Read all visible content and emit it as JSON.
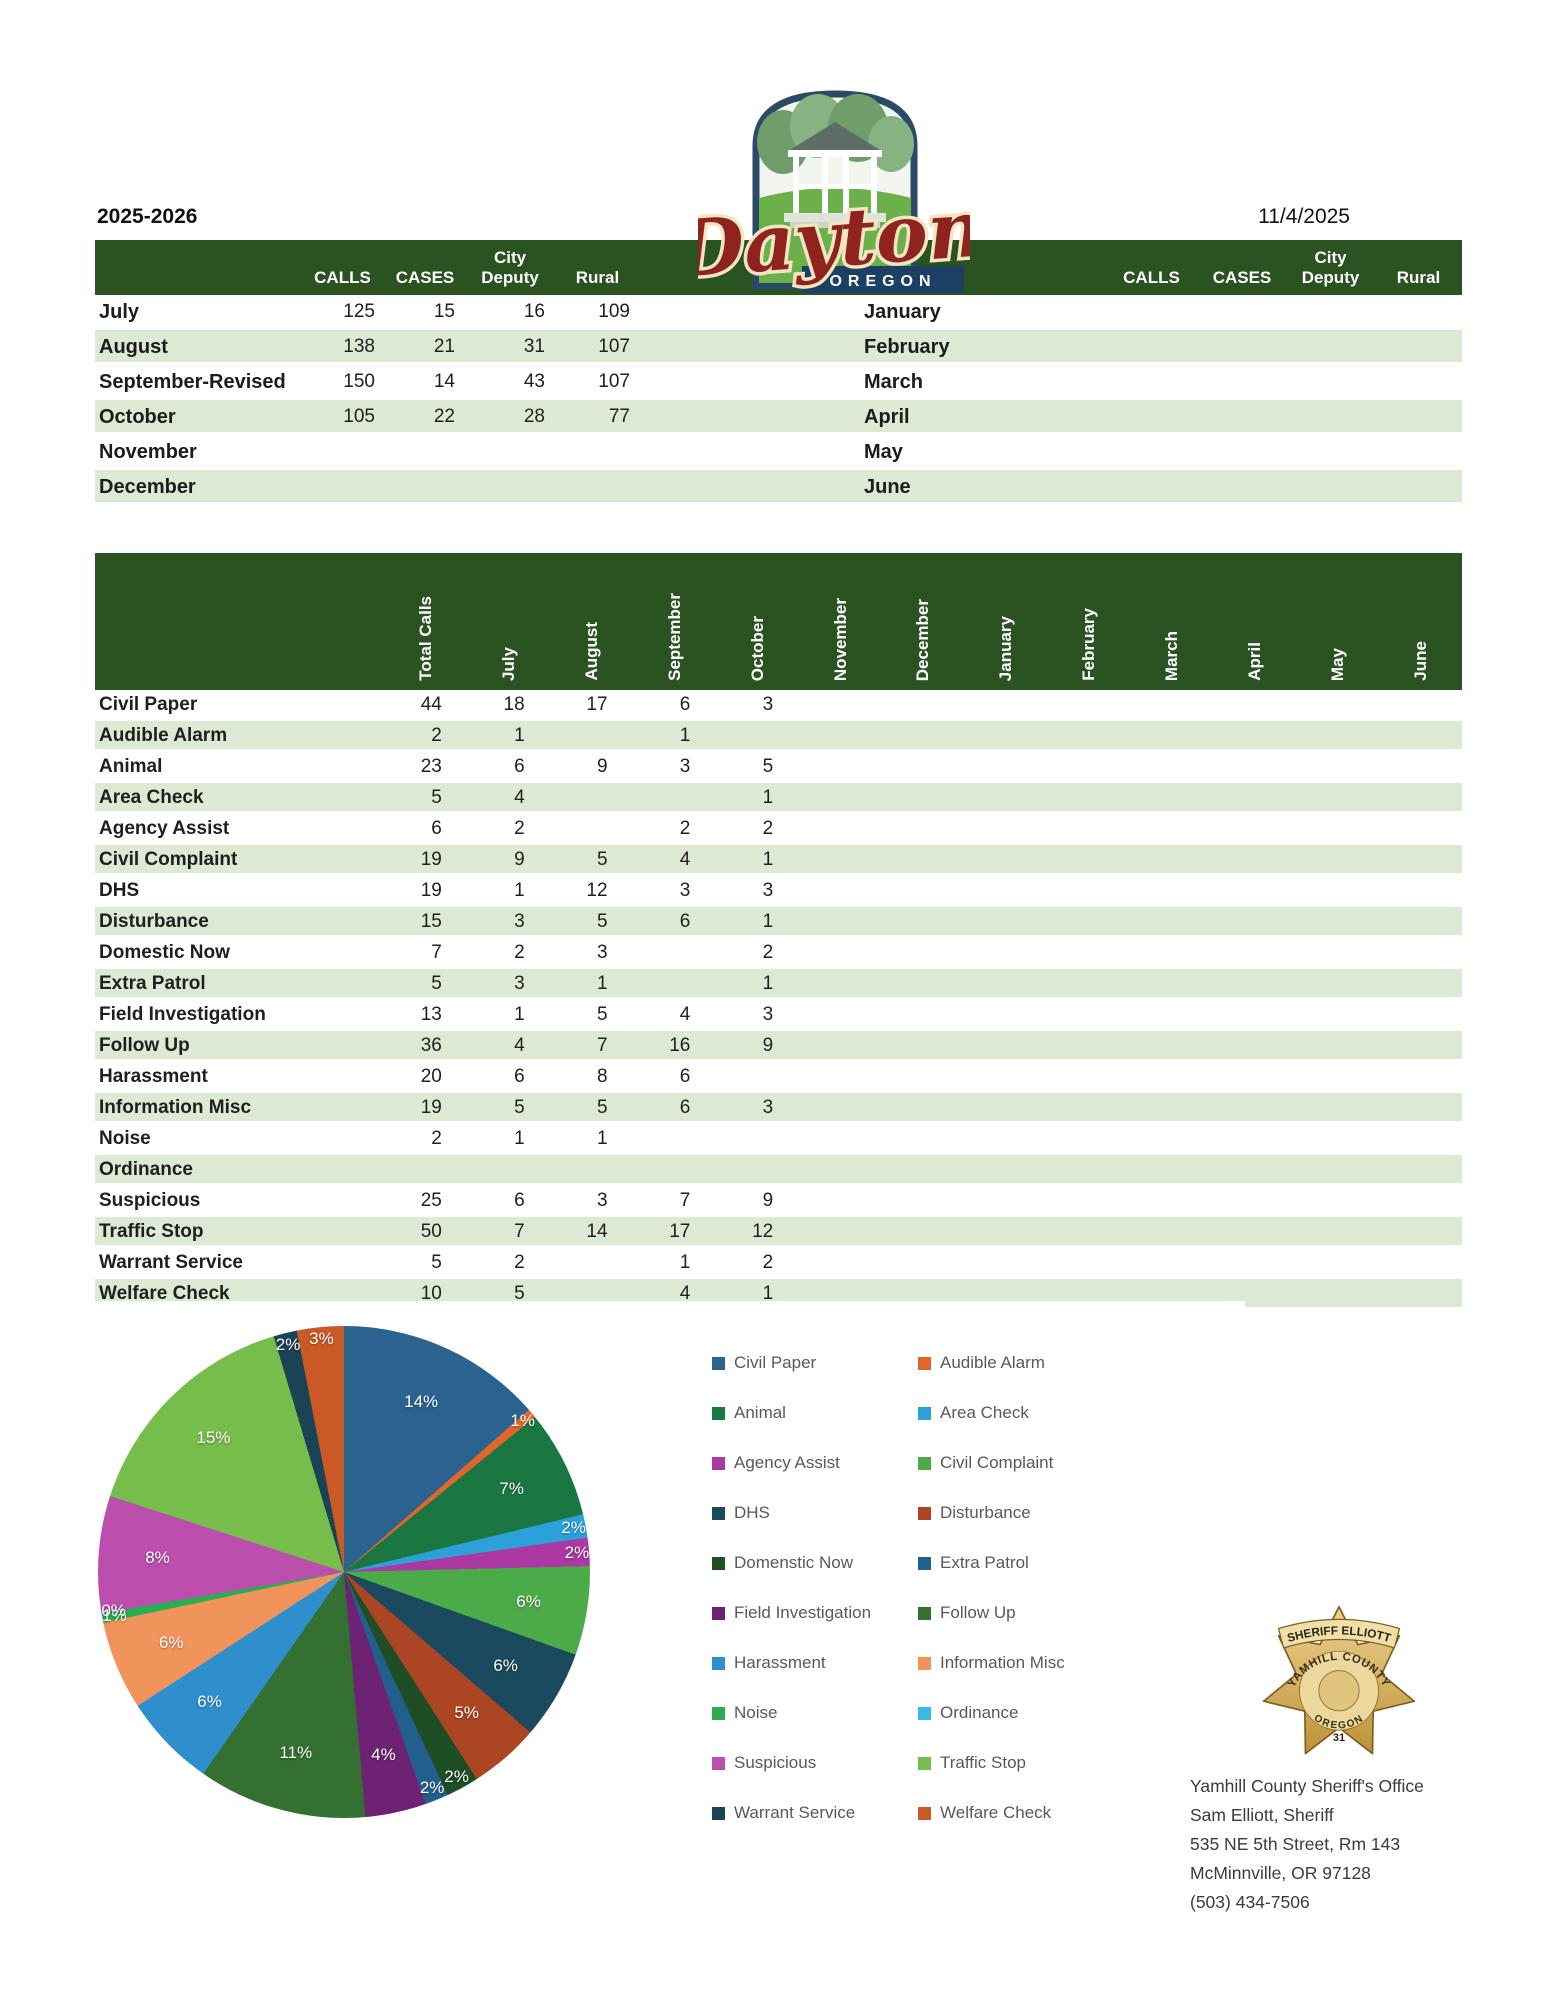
{
  "page": {
    "fiscal_year": "2025-2026",
    "report_date": "11/4/2025"
  },
  "logo": {
    "city": "Dayton",
    "state": "OREGON"
  },
  "summary_table": {
    "headers": {
      "city_line": "City",
      "calls": "CALLS",
      "cases": "CASES",
      "deputy": "Deputy",
      "rural": "Rural"
    },
    "rows": [
      {
        "left_month": "July",
        "left": [
          "125",
          "15",
          "16",
          "109"
        ],
        "right_month": "January",
        "right": [
          "",
          "",
          "",
          ""
        ]
      },
      {
        "left_month": "August",
        "left": [
          "138",
          "21",
          "31",
          "107"
        ],
        "right_month": "February",
        "right": [
          "",
          "",
          "",
          ""
        ]
      },
      {
        "left_month": "September-Revised",
        "left": [
          "150",
          "14",
          "43",
          "107"
        ],
        "right_month": "March",
        "right": [
          "",
          "",
          "",
          ""
        ]
      },
      {
        "left_month": "October",
        "left": [
          "105",
          "22",
          "28",
          "77"
        ],
        "right_month": "April",
        "right": [
          "",
          "",
          "",
          ""
        ]
      },
      {
        "left_month": "November",
        "left": [
          "",
          "",
          "",
          ""
        ],
        "right_month": "May",
        "right": [
          "",
          "",
          "",
          ""
        ]
      },
      {
        "left_month": "December",
        "left": [
          "",
          "",
          "",
          ""
        ],
        "right_month": "June",
        "right": [
          "",
          "",
          "",
          ""
        ]
      }
    ]
  },
  "call_type_table": {
    "columns": [
      "Total Calls",
      "July",
      "August",
      "September",
      "October",
      "November",
      "December",
      "January",
      "February",
      "March",
      "April",
      "May",
      "June"
    ],
    "rows": [
      {
        "label": "Civil Paper",
        "values": [
          "44",
          "18",
          "17",
          "6",
          "3",
          "",
          "",
          "",
          "",
          "",
          "",
          "",
          ""
        ]
      },
      {
        "label": "Audible Alarm",
        "values": [
          "2",
          "1",
          "",
          "1",
          "",
          "",
          "",
          "",
          "",
          "",
          "",
          "",
          ""
        ]
      },
      {
        "label": "Animal",
        "values": [
          "23",
          "6",
          "9",
          "3",
          "5",
          "",
          "",
          "",
          "",
          "",
          "",
          "",
          ""
        ]
      },
      {
        "label": "Area Check",
        "values": [
          "5",
          "4",
          "",
          "",
          "1",
          "",
          "",
          "",
          "",
          "",
          "",
          "",
          ""
        ]
      },
      {
        "label": "Agency Assist",
        "values": [
          "6",
          "2",
          "",
          "2",
          "2",
          "",
          "",
          "",
          "",
          "",
          "",
          "",
          ""
        ]
      },
      {
        "label": "Civil Complaint",
        "values": [
          "19",
          "9",
          "5",
          "4",
          "1",
          "",
          "",
          "",
          "",
          "",
          "",
          "",
          ""
        ]
      },
      {
        "label": "DHS",
        "values": [
          "19",
          "1",
          "12",
          "3",
          "3",
          "",
          "",
          "",
          "",
          "",
          "",
          "",
          ""
        ]
      },
      {
        "label": "Disturbance",
        "values": [
          "15",
          "3",
          "5",
          "6",
          "1",
          "",
          "",
          "",
          "",
          "",
          "",
          "",
          ""
        ]
      },
      {
        "label": "Domestic Now",
        "values": [
          "7",
          "2",
          "3",
          "",
          "2",
          "",
          "",
          "",
          "",
          "",
          "",
          "",
          ""
        ]
      },
      {
        "label": "Extra Patrol",
        "values": [
          "5",
          "3",
          "1",
          "",
          "1",
          "",
          "",
          "",
          "",
          "",
          "",
          "",
          ""
        ]
      },
      {
        "label": "Field Investigation",
        "values": [
          "13",
          "1",
          "5",
          "4",
          "3",
          "",
          "",
          "",
          "",
          "",
          "",
          "",
          ""
        ]
      },
      {
        "label": "Follow Up",
        "values": [
          "36",
          "4",
          "7",
          "16",
          "9",
          "",
          "",
          "",
          "",
          "",
          "",
          "",
          ""
        ]
      },
      {
        "label": "Harassment",
        "values": [
          "20",
          "6",
          "8",
          "6",
          "",
          "",
          "",
          "",
          "",
          "",
          "",
          "",
          ""
        ]
      },
      {
        "label": "Information Misc",
        "values": [
          "19",
          "5",
          "5",
          "6",
          "3",
          "",
          "",
          "",
          "",
          "",
          "",
          "",
          ""
        ]
      },
      {
        "label": "Noise",
        "values": [
          "2",
          "1",
          "1",
          "",
          "",
          "",
          "",
          "",
          "",
          "",
          "",
          "",
          ""
        ]
      },
      {
        "label": "Ordinance",
        "values": [
          "",
          "",
          "",
          "",
          "",
          "",
          "",
          "",
          "",
          "",
          "",
          "",
          ""
        ]
      },
      {
        "label": "Suspicious",
        "values": [
          "25",
          "6",
          "3",
          "7",
          "9",
          "",
          "",
          "",
          "",
          "",
          "",
          "",
          ""
        ]
      },
      {
        "label": "Traffic Stop",
        "values": [
          "50",
          "7",
          "14",
          "17",
          "12",
          "",
          "",
          "",
          "",
          "",
          "",
          "",
          ""
        ]
      },
      {
        "label": "Warrant Service",
        "values": [
          "5",
          "2",
          "",
          "1",
          "2",
          "",
          "",
          "",
          "",
          "",
          "",
          "",
          ""
        ]
      },
      {
        "label": "Welfare Check",
        "values": [
          "10",
          "5",
          "",
          "4",
          "1",
          "",
          "",
          "",
          "",
          "",
          "",
          "",
          ""
        ]
      }
    ]
  },
  "chart_data": {
    "type": "pie",
    "title": "",
    "categories": [
      "Civil Paper",
      "Audible Alarm",
      "Animal",
      "Area Check",
      "Agency Assist",
      "Civil Complaint",
      "DHS",
      "Disturbance",
      "Domestic Now",
      "Extra Patrol",
      "Field Investigation",
      "Follow Up",
      "Harassment",
      "Information Misc",
      "Noise",
      "Ordinance",
      "Suspicious",
      "Traffic Stop",
      "Warrant Service",
      "Welfare Check"
    ],
    "values": [
      44,
      2,
      23,
      5,
      6,
      19,
      19,
      15,
      7,
      5,
      13,
      36,
      20,
      19,
      2,
      0,
      25,
      50,
      5,
      10
    ],
    "labels": [
      "14%",
      "1%",
      "7%",
      "2%",
      "2%",
      "6%",
      "6%",
      "5%",
      "2%",
      "2%",
      "4%",
      "11%",
      "6%",
      "6%",
      "1%",
      "0%",
      "8%",
      "15%",
      "2%",
      "3%"
    ],
    "colors": [
      "#2A648E",
      "#E2662B",
      "#1B7742",
      "#2BA0D9",
      "#AC39A3",
      "#4CAB49",
      "#1B4A5E",
      "#AC4523",
      "#1F4D26",
      "#235F8C",
      "#6E2273",
      "#337031",
      "#2E8FCC",
      "#F0945B",
      "#2BAD52",
      "#3DB9E8",
      "#BC4FAE",
      "#77BD4B",
      "#1A4356",
      "#C95A27"
    ],
    "legend_position": "right",
    "legend_columns": [
      [
        {
          "label": "Civil Paper",
          "color": "#2A648E"
        },
        {
          "label": "Animal",
          "color": "#1B7742"
        },
        {
          "label": "Agency Assist",
          "color": "#AC39A3"
        },
        {
          "label": "DHS",
          "color": "#1B4A5E"
        },
        {
          "label": "Domenstic Now",
          "color": "#1F4D26"
        },
        {
          "label": "Field Investigation",
          "color": "#6E2273"
        },
        {
          "label": "Harassment",
          "color": "#2E8FCC"
        },
        {
          "label": "Noise",
          "color": "#2BAD52"
        },
        {
          "label": "Suspicious",
          "color": "#BC4FAE"
        },
        {
          "label": "Warrant Service",
          "color": "#1A4356"
        }
      ],
      [
        {
          "label": "Audible Alarm",
          "color": "#E2662B"
        },
        {
          "label": "Area Check",
          "color": "#2BA0D9"
        },
        {
          "label": "Civil Complaint",
          "color": "#4CAB49"
        },
        {
          "label": "Disturbance",
          "color": "#AC4523"
        },
        {
          "label": "Extra Patrol",
          "color": "#235F8C"
        },
        {
          "label": "Follow Up",
          "color": "#337031"
        },
        {
          "label": "Information Misc",
          "color": "#F0945B"
        },
        {
          "label": "Ordinance",
          "color": "#3DB9E8"
        },
        {
          "label": "Traffic Stop",
          "color": "#77BD4B"
        },
        {
          "label": "Welfare Check",
          "color": "#C95A27"
        }
      ]
    ],
    "theme": {
      "header_green": "#2B5322",
      "stripe_green": "#DCE9D3"
    }
  },
  "footer": {
    "office": "Yamhill County Sheriff's Office",
    "sheriff": "Sam Elliott, Sheriff",
    "address1": "535 NE 5th Street, Rm 143",
    "address2": "McMinnville, OR 97128",
    "phone": "(503) 434-7506",
    "badge": {
      "banner": "SHERIFF ELLIOTT",
      "arc_top": "YAMHILL COUNTY",
      "arc_bottom": "OREGON",
      "number": "31"
    }
  }
}
